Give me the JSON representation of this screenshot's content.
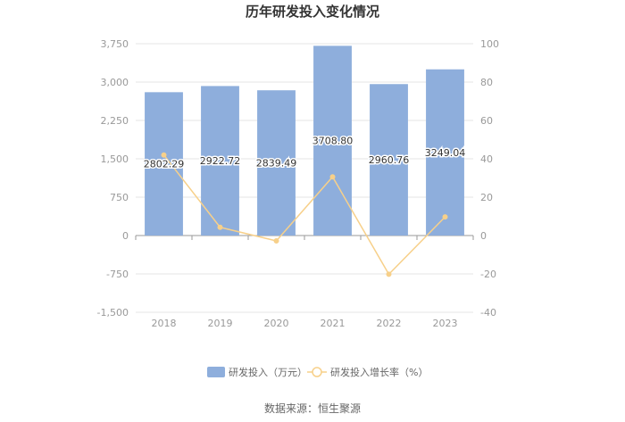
{
  "chart_data": {
    "type": "bar",
    "title": "历年研发投入变化情况",
    "categories": [
      "2018",
      "2019",
      "2020",
      "2021",
      "2022",
      "2023"
    ],
    "series": [
      {
        "name": "研发投入（万元）",
        "type": "bar",
        "axis": "left",
        "color": "#8eaedc",
        "values": [
          2802.29,
          2922.72,
          2839.49,
          3708.8,
          2960.76,
          3249.04
        ],
        "labels": [
          "2802.29",
          "2922.72",
          "2839.49",
          "3708.80",
          "2960.76",
          "3249.04"
        ]
      },
      {
        "name": "研发投入增长率（%）",
        "type": "line",
        "axis": "right",
        "color": "#f7d08a",
        "values": [
          42.0,
          4.3,
          -2.8,
          30.6,
          -20.2,
          9.7
        ]
      }
    ],
    "y_left": {
      "ylim": [
        -1500,
        3750
      ],
      "ticks": [
        -1500,
        -750,
        0,
        750,
        1500,
        2250,
        3000,
        3750
      ],
      "tick_labels": [
        "-1,500",
        "-750",
        "0",
        "750",
        "1,500",
        "2,250",
        "3,000",
        "3,750"
      ]
    },
    "y_right": {
      "ylim": [
        -40,
        100
      ],
      "ticks": [
        -40,
        -20,
        0,
        20,
        40,
        60,
        80,
        100
      ],
      "tick_labels": [
        "-40",
        "-20",
        "0",
        "20",
        "40",
        "60",
        "80",
        "100"
      ]
    },
    "grid": true,
    "legend": "bottom"
  },
  "source_text": "数据来源：恒生聚源"
}
